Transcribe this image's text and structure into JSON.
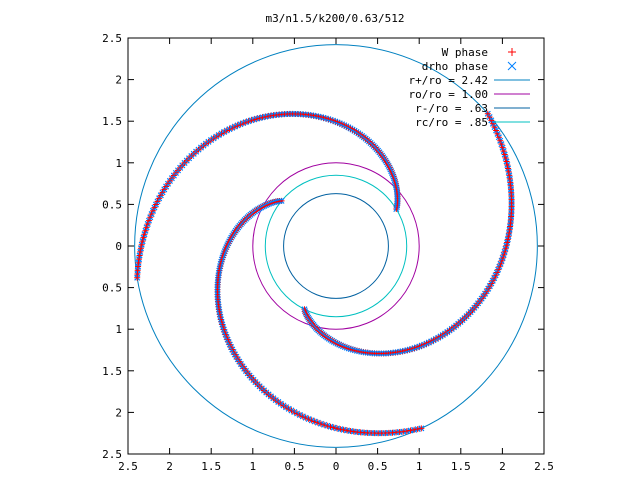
{
  "chart_data": {
    "type": "scatter",
    "title": "m3/n1.5/k200/0.63/512",
    "xlim": [
      -2.5,
      2.5
    ],
    "ylim": [
      -2.5,
      2.5
    ],
    "x_ticks": [
      -2.5,
      -2,
      -1.5,
      -1,
      -0.5,
      0,
      0.5,
      1,
      1.5,
      2,
      2.5
    ],
    "x_tick_labels": [
      "2.5",
      "2",
      "1.5",
      "1",
      "0.5",
      "0",
      "0.5",
      "1",
      "1.5",
      "2",
      "2.5"
    ],
    "y_ticks": [
      2.5,
      2,
      1.5,
      1,
      0.5,
      0,
      -0.5,
      -1,
      -1.5,
      -2,
      -2.5
    ],
    "y_tick_labels": [
      "2.5",
      "2",
      "1.5",
      "1",
      "0.5",
      "0",
      "0.5",
      "1",
      "1.5",
      "2",
      "2.5"
    ],
    "grid": false,
    "legend_position": "top-right",
    "series": [
      {
        "name": "W phase",
        "marker": "+",
        "color": "#ff0000"
      },
      {
        "name": "drho phase",
        "marker": "x",
        "color": "#0080ff"
      },
      {
        "name": "r+/ro = 2.42",
        "kind": "circle",
        "radius": 2.42,
        "color": "#0080c0"
      },
      {
        "name": "ro/ro = 1.00",
        "kind": "circle",
        "radius": 1.0,
        "color": "#a000a0"
      },
      {
        "name": "r-/ro = .63",
        "kind": "circle",
        "radius": 0.63,
        "color": "#0060a0"
      },
      {
        "name": "rc/ro = .85",
        "kind": "circle",
        "radius": 0.85,
        "color": "#00c0c0"
      }
    ],
    "arms": [
      {
        "r0": 0.85,
        "theta0": 0.55,
        "r1": 2.42,
        "theta1": 3.3,
        "rate": 1.0
      },
      {
        "r0": 0.85,
        "theta0": 4.25,
        "r1": 2.42,
        "theta1": 7.0,
        "rate": 1.0
      },
      {
        "r0": 0.85,
        "theta0": 2.45,
        "r1": 2.42,
        "theta1": 5.15,
        "rate": 1.0
      }
    ]
  }
}
